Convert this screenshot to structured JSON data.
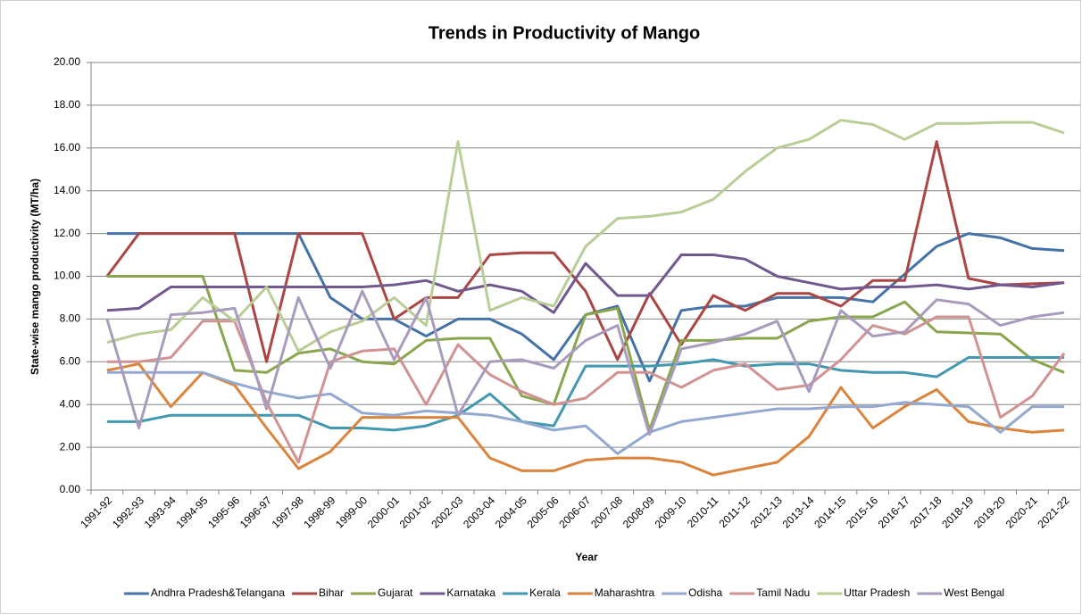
{
  "chart_data": {
    "type": "line",
    "title": "Trends in Productivity of Mango",
    "x_label": "Year",
    "y_label": "State-wise mango productivity (MT/ha)",
    "categories": [
      "1991-92",
      "1992-93",
      "1993-94",
      "1994-95",
      "1995-96",
      "1996-97",
      "1997-98",
      "1998-99",
      "1999-00",
      "2000-01",
      "2001-02",
      "2002-03",
      "2003-04",
      "2004-05",
      "2005-06",
      "2006-07",
      "2007-08",
      "2008-09",
      "2009-10",
      "2010-11",
      "2011-12",
      "2012-13",
      "2013-14",
      "2014-15",
      "2015-16",
      "2016-17",
      "2017-18",
      "2018-19",
      "2019-20",
      "2020-21",
      "2021-22"
    ],
    "ylim": [
      0,
      20
    ],
    "yticks": [
      {
        "value": 0,
        "label": "0.00"
      },
      {
        "value": 2,
        "label": "2.00"
      },
      {
        "value": 4,
        "label": "4.00"
      },
      {
        "value": 6,
        "label": "6.00"
      },
      {
        "value": 8,
        "label": "8.00"
      },
      {
        "value": 10,
        "label": "10.00"
      },
      {
        "value": 12,
        "label": "12.00"
      },
      {
        "value": 14,
        "label": "14.00"
      },
      {
        "value": 16,
        "label": "16.00"
      },
      {
        "value": 18,
        "label": "18.00"
      },
      {
        "value": 20,
        "label": "20.00"
      }
    ],
    "grid": true,
    "legend": "bottom",
    "series": [
      {
        "name": "Andhra Pradesh&Telangana",
        "color": "#4572A7",
        "values": [
          12,
          12,
          12,
          12,
          12,
          12,
          12,
          9.0,
          8.0,
          8.0,
          7.2,
          8.0,
          8.0,
          7.3,
          6.1,
          8.2,
          8.6,
          5.1,
          8.4,
          8.6,
          8.6,
          9.0,
          9.0,
          9.0,
          8.8,
          10.1,
          11.4,
          12.0,
          11.8,
          11.3,
          11.2
        ]
      },
      {
        "name": "Bihar",
        "color": "#AA4643",
        "values": [
          10.0,
          12,
          12,
          12,
          12,
          6.0,
          12,
          12,
          12,
          8.0,
          9.0,
          9.0,
          11.0,
          11.1,
          11.1,
          9.3,
          6.1,
          9.2,
          6.8,
          9.1,
          8.4,
          9.2,
          9.2,
          8.6,
          9.8,
          9.8,
          16.3,
          9.9,
          9.6,
          9.65,
          9.7
        ]
      },
      {
        "name": "Gujarat",
        "color": "#89A54E",
        "values": [
          10,
          10,
          10,
          10,
          5.6,
          5.5,
          6.4,
          6.6,
          6.0,
          5.9,
          7.0,
          7.1,
          7.1,
          4.4,
          4.0,
          8.2,
          8.5,
          2.8,
          7.0,
          7.0,
          7.1,
          7.1,
          7.9,
          8.1,
          8.1,
          8.8,
          7.4,
          7.35,
          7.3,
          6.1,
          5.5
        ]
      },
      {
        "name": "Karnataka",
        "color": "#71588F",
        "values": [
          8.4,
          8.5,
          9.5,
          9.5,
          9.5,
          9.5,
          9.5,
          9.5,
          9.5,
          9.6,
          9.8,
          9.3,
          9.6,
          9.3,
          8.3,
          10.6,
          9.1,
          9.1,
          11.0,
          11.0,
          10.8,
          10.0,
          9.7,
          9.4,
          9.5,
          9.5,
          9.6,
          9.4,
          9.6,
          9.5,
          9.7
        ]
      },
      {
        "name": "Kerala",
        "color": "#4198AF",
        "values": [
          3.2,
          3.2,
          3.5,
          3.5,
          3.5,
          3.5,
          3.5,
          2.9,
          2.9,
          2.8,
          3.0,
          3.5,
          4.5,
          3.2,
          3.0,
          5.8,
          5.8,
          5.8,
          5.9,
          6.1,
          5.8,
          5.9,
          5.9,
          5.6,
          5.5,
          5.5,
          5.3,
          6.2,
          6.2,
          6.2,
          6.2
        ]
      },
      {
        "name": "Maharashtra",
        "color": "#DB843D",
        "values": [
          5.6,
          5.9,
          3.9,
          5.5,
          4.9,
          2.9,
          1.0,
          1.8,
          3.4,
          3.4,
          3.4,
          3.4,
          1.5,
          0.9,
          0.9,
          1.4,
          1.5,
          1.5,
          1.3,
          0.7,
          1.0,
          1.3,
          2.5,
          4.8,
          2.9,
          3.9,
          4.7,
          3.2,
          2.9,
          2.7,
          2.8
        ]
      },
      {
        "name": "Odisha",
        "color": "#93A9CF",
        "values": [
          5.5,
          5.5,
          5.5,
          5.5,
          5.0,
          4.6,
          4.3,
          4.5,
          3.6,
          3.5,
          3.7,
          3.6,
          3.5,
          3.2,
          2.8,
          3.0,
          1.7,
          2.7,
          3.2,
          3.4,
          3.6,
          3.8,
          3.8,
          3.9,
          3.9,
          4.1,
          4.0,
          3.9,
          2.7,
          3.9,
          3.9
        ]
      },
      {
        "name": "Tamil Nadu",
        "color": "#D19392",
        "values": [
          6.0,
          6.0,
          6.2,
          7.9,
          7.9,
          4.1,
          1.3,
          6.0,
          6.5,
          6.6,
          4.0,
          6.8,
          5.4,
          4.6,
          4.0,
          4.3,
          5.5,
          5.5,
          4.8,
          5.6,
          5.9,
          4.7,
          4.9,
          6.1,
          7.7,
          7.3,
          8.1,
          8.1,
          3.4,
          4.4,
          6.4
        ]
      },
      {
        "name": "Uttar Pradesh",
        "color": "#B9CD96",
        "values": [
          6.9,
          7.3,
          7.5,
          9.0,
          7.9,
          9.5,
          6.5,
          7.4,
          7.9,
          9.0,
          7.7,
          16.3,
          8.4,
          9.0,
          8.6,
          11.4,
          12.7,
          12.8,
          13.0,
          13.6,
          14.9,
          16.0,
          16.4,
          17.3,
          17.1,
          16.4,
          17.15,
          17.15,
          17.2,
          17.2,
          16.7
        ]
      },
      {
        "name": "West Bengal",
        "color": "#A99BBD",
        "values": [
          8.0,
          2.9,
          8.2,
          8.3,
          8.5,
          3.8,
          9.0,
          5.7,
          9.3,
          6.1,
          9.0,
          3.5,
          6.0,
          6.1,
          5.7,
          7.0,
          7.7,
          2.6,
          6.6,
          6.9,
          7.3,
          7.9,
          4.6,
          8.4,
          7.2,
          7.4,
          8.9,
          8.7,
          7.7,
          8.1,
          8.3
        ]
      }
    ]
  }
}
